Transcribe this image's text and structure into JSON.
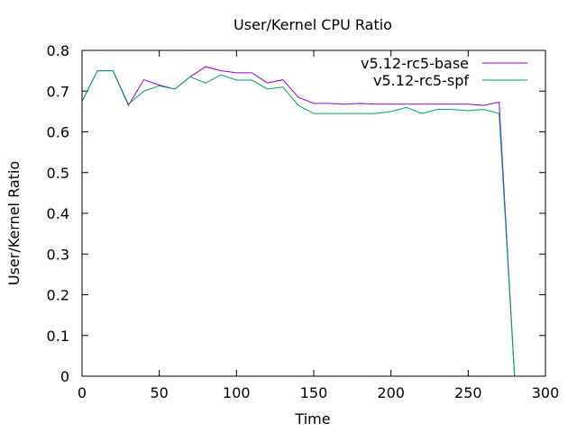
{
  "chart_data": {
    "type": "line",
    "title": "User/Kernel CPU Ratio",
    "xlabel": "Time",
    "ylabel": "User/Kernel Ratio",
    "xlim": [
      0,
      300
    ],
    "ylim": [
      0,
      0.8
    ],
    "xticks": [
      0,
      50,
      100,
      150,
      200,
      250,
      300
    ],
    "yticks": [
      0,
      0.1,
      0.2,
      0.3,
      0.4,
      0.5,
      0.6,
      0.7,
      0.8
    ],
    "grid": false,
    "legend_position": "top-right",
    "series": [
      {
        "name": "v5.12-rc5-base",
        "color": "#9400d3",
        "x": [
          0,
          10,
          20,
          30,
          40,
          50,
          60,
          70,
          80,
          90,
          100,
          110,
          120,
          130,
          140,
          150,
          160,
          170,
          180,
          190,
          200,
          210,
          220,
          230,
          240,
          250,
          260,
          270,
          280
        ],
        "y": [
          0.675,
          0.75,
          0.75,
          0.665,
          0.728,
          0.715,
          0.705,
          0.735,
          0.76,
          0.75,
          0.745,
          0.745,
          0.72,
          0.728,
          0.685,
          0.67,
          0.67,
          0.668,
          0.67,
          0.668,
          0.668,
          0.668,
          0.668,
          0.668,
          0.668,
          0.668,
          0.665,
          0.673,
          0
        ]
      },
      {
        "name": "v5.12-rc5-spf",
        "color": "#009e73",
        "x": [
          0,
          10,
          20,
          30,
          40,
          50,
          60,
          70,
          80,
          90,
          100,
          110,
          120,
          130,
          140,
          150,
          160,
          170,
          180,
          190,
          200,
          210,
          220,
          230,
          240,
          250,
          260,
          270,
          280
        ],
        "y": [
          0.675,
          0.75,
          0.75,
          0.668,
          0.7,
          0.713,
          0.705,
          0.735,
          0.72,
          0.74,
          0.727,
          0.727,
          0.705,
          0.71,
          0.665,
          0.645,
          0.645,
          0.645,
          0.645,
          0.645,
          0.65,
          0.66,
          0.645,
          0.655,
          0.655,
          0.652,
          0.655,
          0.645,
          0
        ]
      }
    ]
  }
}
